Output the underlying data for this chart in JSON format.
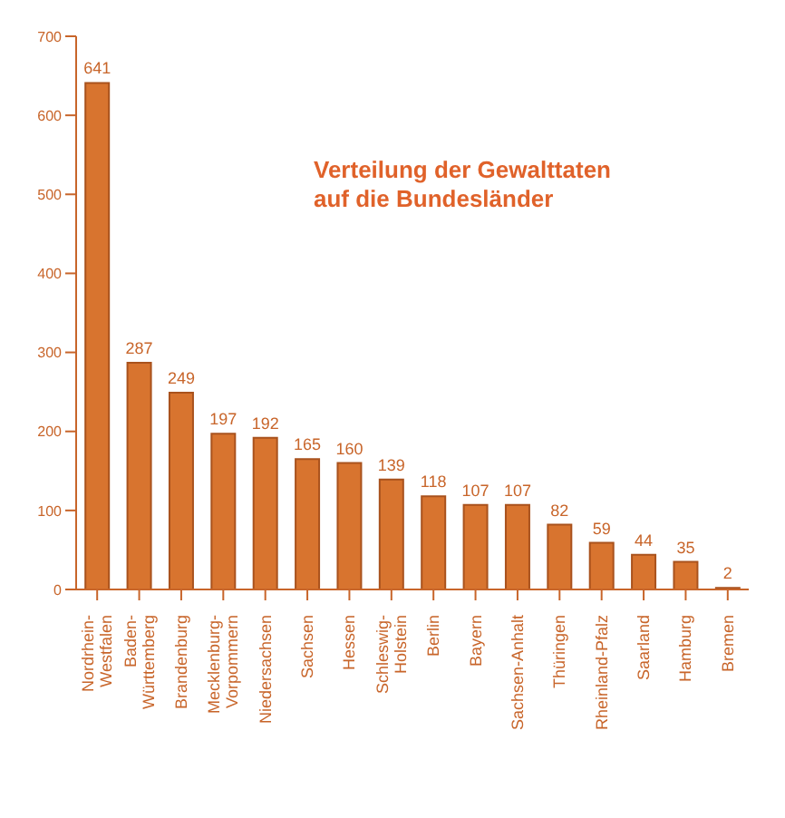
{
  "chart_data": {
    "type": "bar",
    "title": "Verteilung der Gewalttaten auf die Bundesländer",
    "categories": [
      "Nordrhein-Westfalen",
      "Baden-Württemberg",
      "Brandenburg",
      "Mecklenburg-Vorpommern",
      "Niedersachsen",
      "Sachsen",
      "Hessen",
      "Schleswig-Holstein",
      "Berlin",
      "Bayern",
      "Sachsen-Anhalt",
      "Thüringen",
      "Rheinland-Pfalz",
      "Saarland",
      "Hamburg",
      "Bremen"
    ],
    "values": [
      641,
      287,
      249,
      197,
      192,
      165,
      160,
      139,
      118,
      107,
      107,
      82,
      59,
      44,
      35,
      2
    ],
    "color": "#d8742f",
    "ylim": [
      0,
      700
    ],
    "yticks": [
      0,
      100,
      200,
      300,
      400,
      500,
      600,
      700
    ],
    "grid": false,
    "data_labels": true
  }
}
